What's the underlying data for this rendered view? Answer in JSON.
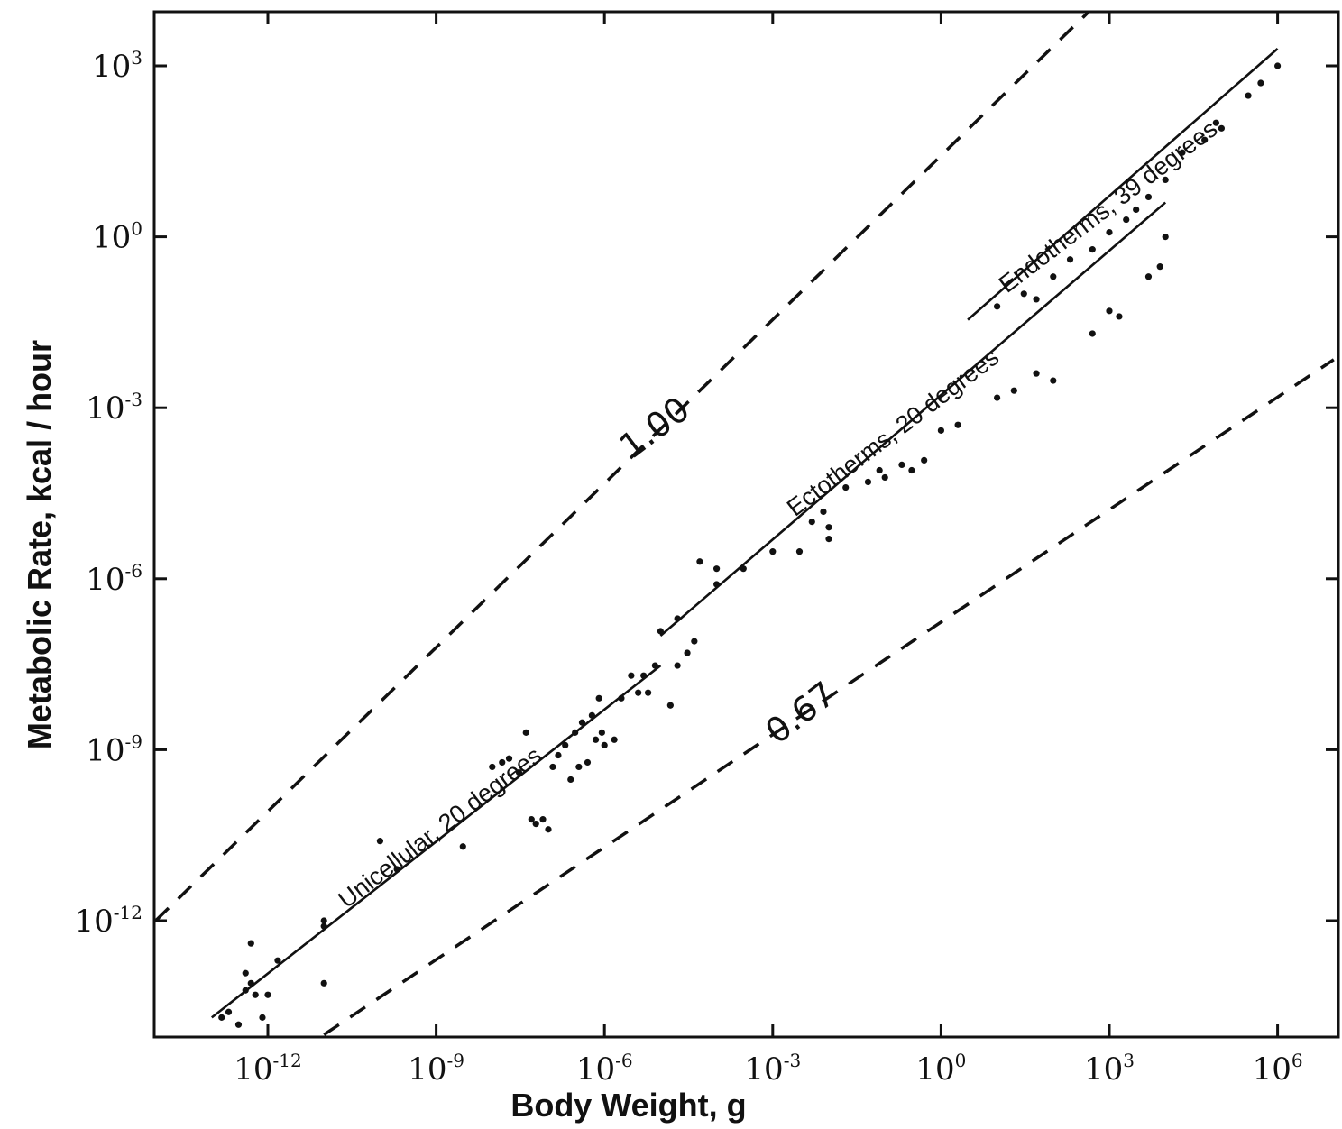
{
  "chart_data": {
    "type": "scatter",
    "title": "",
    "xlabel": "Body Weight, g",
    "ylabel": "Metabolic Rate, kcal / hour",
    "x_scale": "log",
    "y_scale": "log",
    "xlim": [
      1e-14,
      10000000.0
    ],
    "ylim": [
      1e-14,
      10000.0
    ],
    "grid": false,
    "x_ticks": [
      {
        "value": 1e-12,
        "base": "10",
        "exp": "-12"
      },
      {
        "value": 1e-09,
        "base": "10",
        "exp": "-9"
      },
      {
        "value": 1e-06,
        "base": "10",
        "exp": "-6"
      },
      {
        "value": 0.001,
        "base": "10",
        "exp": "-3"
      },
      {
        "value": 1,
        "base": "10",
        "exp": "0"
      },
      {
        "value": 1000.0,
        "base": "10",
        "exp": "3"
      },
      {
        "value": 1000000.0,
        "base": "10",
        "exp": "6"
      }
    ],
    "y_ticks": [
      {
        "value": 1000.0,
        "base": "10",
        "exp": "3"
      },
      {
        "value": 1,
        "base": "10",
        "exp": "0"
      },
      {
        "value": 0.001,
        "base": "10",
        "exp": "-3"
      },
      {
        "value": 1e-06,
        "base": "10",
        "exp": "-6"
      },
      {
        "value": 1e-09,
        "base": "10",
        "exp": "-9"
      },
      {
        "value": 1e-12,
        "base": "10",
        "exp": "-12"
      }
    ],
    "fit_lines": [
      {
        "label": "Unicellular, 20 degrees",
        "x_range": [
          1e-13,
          1e-05
        ],
        "y_range": [
          2e-14,
          3e-08
        ]
      },
      {
        "label": "Ectotherms, 20 degrees",
        "x_range": [
          1e-05,
          10000.0
        ],
        "y_range": [
          1e-07,
          4
        ]
      },
      {
        "label": "Endotherms, 39 degrees",
        "x_range": [
          3.0,
          1000000.0
        ],
        "y_range": [
          0.035,
          2000
        ]
      }
    ],
    "reference_lines": [
      {
        "label": "1.00",
        "x_range": [
          1e-14,
          1000.0
        ],
        "y_range": [
          1e-12,
          20000.0
        ]
      },
      {
        "label": "0.67",
        "x_range": [
          1e-11,
          10000000.0
        ],
        "y_range": [
          1e-14,
          0.007
        ]
      }
    ],
    "series": [
      {
        "name": "Unicellular, 20 degrees",
        "points": [
          [
            1.5e-13,
            2e-14
          ],
          [
            2e-13,
            2.5e-14
          ],
          [
            3e-13,
            1.5e-14
          ],
          [
            4e-13,
            1.2e-13
          ],
          [
            4e-13,
            6e-14
          ],
          [
            5e-13,
            8e-14
          ],
          [
            5e-13,
            4e-13
          ],
          [
            6e-13,
            5e-14
          ],
          [
            8e-13,
            2e-14
          ],
          [
            1e-12,
            5e-14
          ],
          [
            1.5e-12,
            2e-13
          ],
          [
            1e-11,
            8e-13
          ],
          [
            1e-11,
            1e-12
          ],
          [
            1e-11,
            8e-14
          ],
          [
            1e-10,
            2.5e-11
          ],
          [
            2e-10,
            8e-12
          ],
          [
            3e-09,
            2e-11
          ],
          [
            1e-08,
            5e-10
          ],
          [
            1.5e-08,
            6e-10
          ],
          [
            2e-08,
            7e-10
          ],
          [
            3e-08,
            4e-10
          ],
          [
            4e-08,
            2e-09
          ],
          [
            5e-08,
            6e-11
          ],
          [
            6e-08,
            5e-11
          ],
          [
            8e-08,
            6e-11
          ],
          [
            1e-07,
            4e-11
          ],
          [
            1.2e-07,
            5e-10
          ],
          [
            1.5e-07,
            8e-10
          ],
          [
            2e-07,
            1.2e-09
          ],
          [
            2.5e-07,
            3e-10
          ],
          [
            3e-07,
            2e-09
          ],
          [
            3.5e-07,
            5e-10
          ],
          [
            4e-07,
            3e-09
          ],
          [
            5e-07,
            6e-10
          ],
          [
            6e-07,
            4e-09
          ],
          [
            7e-07,
            1.5e-09
          ],
          [
            8e-07,
            8e-09
          ],
          [
            9e-07,
            2e-09
          ],
          [
            1e-06,
            1.2e-09
          ],
          [
            1.5e-06,
            1.5e-09
          ],
          [
            2e-06,
            8e-09
          ],
          [
            3e-06,
            2e-08
          ],
          [
            4e-06,
            1e-08
          ],
          [
            5e-06,
            2e-08
          ],
          [
            6e-06,
            1e-08
          ],
          [
            8e-06,
            3e-08
          ],
          [
            1.5e-05,
            6e-09
          ],
          [
            2e-05,
            3e-08
          ],
          [
            3e-05,
            5e-08
          ],
          [
            4e-05,
            8e-08
          ]
        ]
      },
      {
        "name": "Ectotherms, 20 degrees",
        "points": [
          [
            1e-05,
            1.2e-07
          ],
          [
            2e-05,
            2e-07
          ],
          [
            5e-05,
            2e-06
          ],
          [
            0.0001,
            1.5e-06
          ],
          [
            0.0001,
            8e-07
          ],
          [
            0.0003,
            1.5e-06
          ],
          [
            0.001,
            3e-06
          ],
          [
            0.003,
            3e-06
          ],
          [
            0.005,
            1e-05
          ],
          [
            0.008,
            1.5e-05
          ],
          [
            0.01,
            5e-06
          ],
          [
            0.01,
            8e-06
          ],
          [
            0.02,
            4e-05
          ],
          [
            0.05,
            5e-05
          ],
          [
            0.08,
            8e-05
          ],
          [
            0.1,
            6e-05
          ],
          [
            0.2,
            0.0001
          ],
          [
            0.3,
            8e-05
          ],
          [
            0.5,
            0.00012
          ],
          [
            1,
            0.0004
          ],
          [
            2,
            0.0005
          ],
          [
            10,
            0.0015
          ],
          [
            20,
            0.002
          ],
          [
            50,
            0.004
          ],
          [
            100,
            0.003
          ],
          [
            500,
            0.02
          ],
          [
            1000,
            0.05
          ],
          [
            1500,
            0.04
          ],
          [
            5000,
            0.2
          ],
          [
            8000,
            0.3
          ],
          [
            10000.0,
            1
          ]
        ]
      },
      {
        "name": "Endotherms, 39 degrees",
        "points": [
          [
            10,
            0.06
          ],
          [
            30,
            0.1
          ],
          [
            50,
            0.08
          ],
          [
            100,
            0.2
          ],
          [
            200,
            0.4
          ],
          [
            500,
            0.6
          ],
          [
            1000,
            1.2
          ],
          [
            2000,
            2
          ],
          [
            3000,
            3
          ],
          [
            5000,
            5
          ],
          [
            10000.0,
            10
          ],
          [
            20000.0,
            30
          ],
          [
            50000.0,
            50
          ],
          [
            80000.0,
            100
          ],
          [
            100000.0,
            80
          ],
          [
            300000.0,
            300
          ],
          [
            500000.0,
            500
          ],
          [
            1000000.0,
            1000
          ]
        ]
      }
    ]
  }
}
